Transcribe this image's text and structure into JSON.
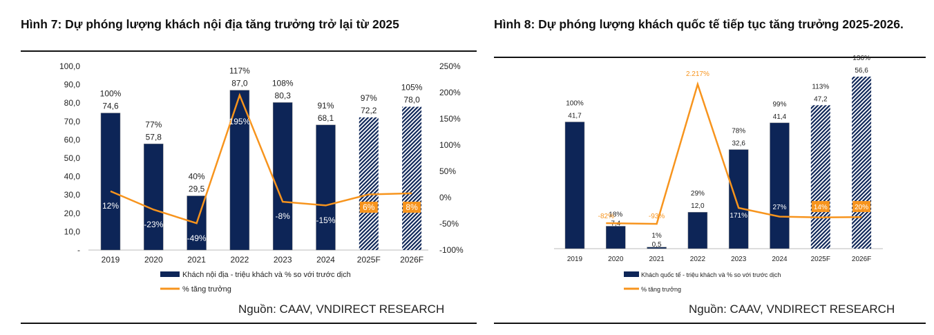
{
  "chart_data": [
    {
      "type": "bar+line",
      "title": "Hình 7: Dự phóng lượng khách nội địa tăng trưởng trở lại từ 2025",
      "categories": [
        "2019",
        "2020",
        "2021",
        "2022",
        "2023",
        "2024",
        "2025F",
        "2026F"
      ],
      "forecast": [
        false,
        false,
        false,
        false,
        false,
        false,
        true,
        true
      ],
      "series": [
        {
          "name": "Khách nội địa - triệu khách và % so với trước dịch",
          "type": "bar",
          "values": [
            74.6,
            57.8,
            29.5,
            87.0,
            80.3,
            68.1,
            72.2,
            78.0
          ],
          "value_labels": [
            "74,6",
            "57,8",
            "29,5",
            "87,0",
            "80,3",
            "68,1",
            "72,2",
            "78,0"
          ],
          "pct_labels": [
            "100%",
            "77%",
            "40%",
            "117%",
            "108%",
            "91%",
            "97%",
            "105%"
          ],
          "color": "#0d2557"
        },
        {
          "name": "% tăng trưởng",
          "type": "line",
          "axis": "right",
          "values": [
            12,
            -23,
            -49,
            195,
            -8,
            -15,
            6,
            8
          ],
          "labels": [
            "12%",
            "-23%",
            "-49%",
            "195%",
            "-8%",
            "-15%",
            "6%",
            "8%"
          ],
          "color": "#f7941d"
        }
      ],
      "ylim": [
        0,
        100
      ],
      "yticks": [
        "-",
        "10,0",
        "20,0",
        "30,0",
        "40,0",
        "50,0",
        "60,0",
        "70,0",
        "80,0",
        "90,0",
        "100,0"
      ],
      "y2lim": [
        -100,
        250
      ],
      "y2ticks": [
        "-100%",
        "-50%",
        "0%",
        "50%",
        "100%",
        "150%",
        "200%",
        "250%"
      ],
      "legend": "bottom",
      "grid": false,
      "source": "Nguồn: CAAV, VNDIRECT RESEARCH"
    },
    {
      "type": "bar+line",
      "title": "Hình 8: Dự phóng lượng khách quốc tế tiếp tục tăng trưởng 2025-2026.",
      "categories": [
        "2019",
        "2020",
        "2021",
        "2022",
        "2023",
        "2024",
        "2025F",
        "2026F"
      ],
      "forecast": [
        false,
        false,
        false,
        false,
        false,
        false,
        true,
        true
      ],
      "series": [
        {
          "name": "Khách quốc tế - triệu khách và % so với trước dịch",
          "type": "bar",
          "values": [
            41.7,
            7.4,
            0.5,
            12.0,
            32.6,
            41.4,
            47.2,
            56.6
          ],
          "value_labels": [
            "41,7",
            "7,4",
            "0,5",
            "12,0",
            "32,6",
            "41,4",
            "47,2",
            "56,6"
          ],
          "pct_labels": [
            "100%",
            "18%",
            "1%",
            "29%",
            "78%",
            "99%",
            "113%",
            "136%"
          ],
          "color": "#0d2557"
        },
        {
          "name": "% tăng trưởng",
          "type": "line",
          "values": [
            null,
            -82,
            -93,
            2217,
            171,
            27,
            14,
            20
          ],
          "labels": [
            "",
            "-82%",
            "-93%",
            "2.217%",
            "171%",
            "27%",
            "14%",
            "20%"
          ],
          "color": "#f7941d"
        }
      ],
      "legend": "bottom",
      "grid": false,
      "source": "Nguồn: CAAV, VNDIRECT RESEARCH"
    }
  ]
}
